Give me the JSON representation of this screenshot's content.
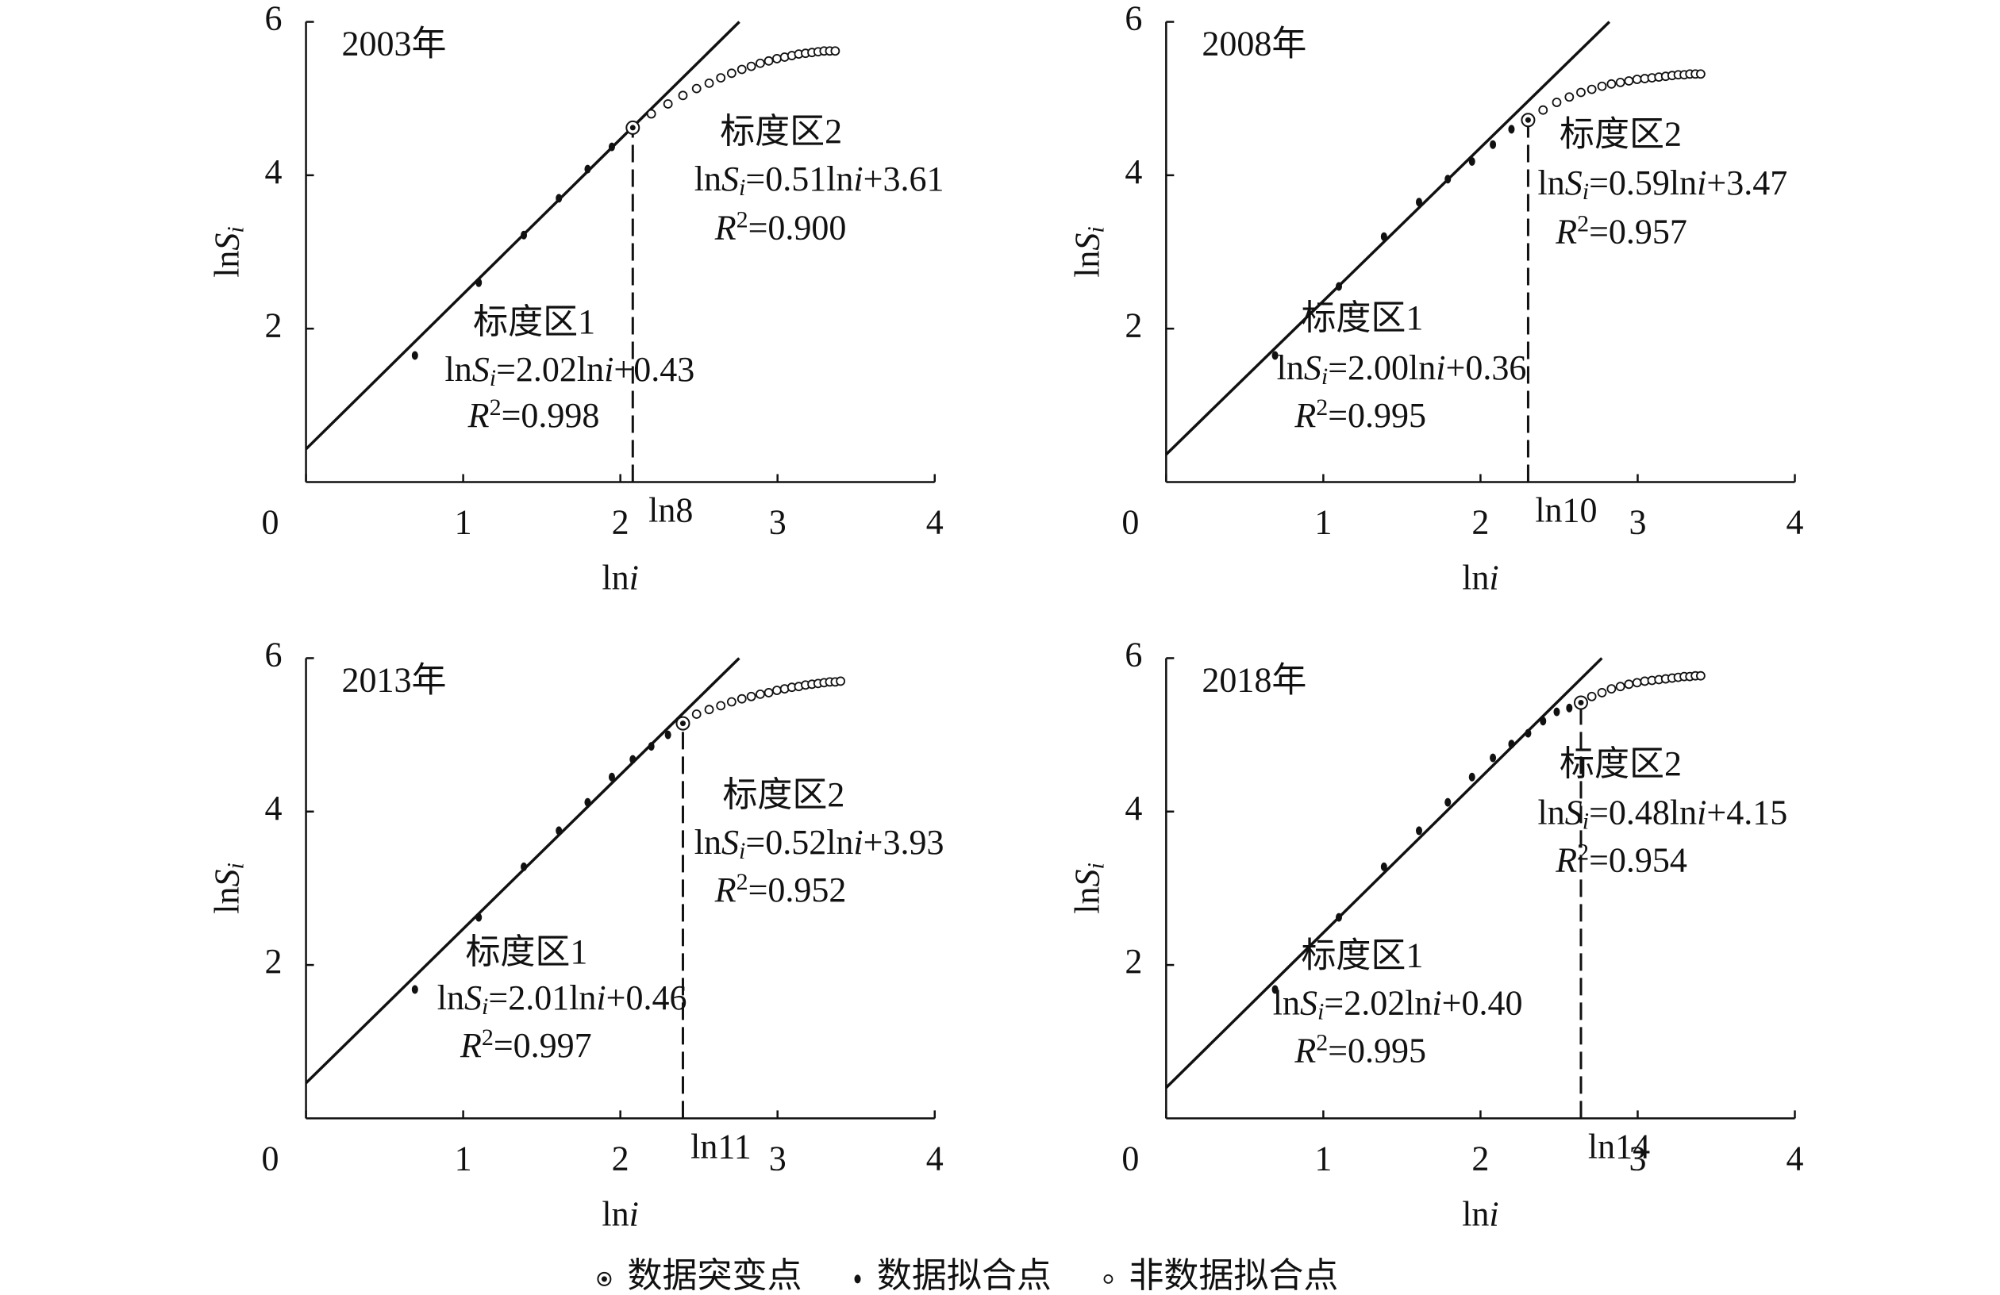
{
  "chart_data": [
    {
      "type": "scatter",
      "title": "2003年",
      "xlabel": [
        "ln",
        "i"
      ],
      "ylabel": [
        "ln",
        "S",
        "i"
      ],
      "xlim": [
        0,
        4
      ],
      "ylim": [
        0,
        6
      ],
      "xticks": [
        0,
        1,
        2,
        3,
        4
      ],
      "yticks": [
        2,
        4,
        6
      ],
      "series": [
        {
          "name": "数据突变点",
          "marker": "dotted-circle",
          "x": [
            2.079
          ],
          "values": [
            4.62
          ]
        },
        {
          "name": "数据拟合点",
          "marker": "filled",
          "x": [
            0.693,
            1.099,
            1.386,
            1.609,
            1.792,
            1.946
          ],
          "values": [
            1.65,
            2.6,
            3.22,
            3.7,
            4.08,
            4.37
          ]
        },
        {
          "name": "非数据拟合点",
          "marker": "open",
          "x": [
            2.197,
            2.303,
            2.398,
            2.485,
            2.565,
            2.639,
            2.708,
            2.773,
            2.833,
            2.89,
            2.944,
            2.996,
            3.045,
            3.091,
            3.135,
            3.178,
            3.219,
            3.258,
            3.296,
            3.332,
            3.367
          ],
          "values": [
            4.8,
            4.93,
            5.04,
            5.13,
            5.2,
            5.27,
            5.33,
            5.38,
            5.42,
            5.46,
            5.49,
            5.52,
            5.54,
            5.56,
            5.58,
            5.59,
            5.6,
            5.61,
            5.62,
            5.62,
            5.62
          ]
        }
      ],
      "fit_line": {
        "x": [
          0,
          2.757
        ],
        "values": [
          0.43,
          6
        ]
      },
      "breakpoint": {
        "value": 2.079,
        "label": "ln8"
      },
      "region1": {
        "label": "标度区1",
        "equation": [
          "ln",
          "S",
          "i",
          "=2.02ln",
          "i",
          "+0.43"
        ],
        "r2": [
          "R",
          "2",
          "=0.998"
        ]
      },
      "region2": {
        "label": "标度区2",
        "equation": [
          "ln",
          "S",
          "i",
          "=0.51ln",
          "i",
          "+3.61"
        ],
        "r2": [
          "R",
          "2",
          "=0.900"
        ]
      }
    },
    {
      "type": "scatter",
      "title": "2008年",
      "xlabel": [
        "ln",
        "i"
      ],
      "ylabel": [
        "ln",
        "S",
        "i"
      ],
      "xlim": [
        0,
        4
      ],
      "ylim": [
        0,
        6
      ],
      "xticks": [
        0,
        1,
        2,
        3,
        4
      ],
      "yticks": [
        2,
        4,
        6
      ],
      "series": [
        {
          "name": "数据突变点",
          "marker": "dotted-circle",
          "x": [
            2.303
          ],
          "values": [
            4.72
          ]
        },
        {
          "name": "数据拟合点",
          "marker": "filled",
          "x": [
            0.693,
            1.099,
            1.386,
            1.609,
            1.792,
            1.946,
            2.079,
            2.197
          ],
          "values": [
            1.65,
            2.55,
            3.2,
            3.65,
            3.95,
            4.18,
            4.4,
            4.6
          ]
        },
        {
          "name": "非数据拟合点",
          "marker": "open",
          "x": [
            2.398,
            2.485,
            2.565,
            2.639,
            2.708,
            2.773,
            2.833,
            2.89,
            2.944,
            2.996,
            3.045,
            3.091,
            3.135,
            3.178,
            3.219,
            3.258,
            3.296,
            3.332,
            3.367,
            3.401
          ],
          "values": [
            4.85,
            4.95,
            5.02,
            5.08,
            5.12,
            5.16,
            5.19,
            5.21,
            5.23,
            5.25,
            5.26,
            5.27,
            5.28,
            5.29,
            5.3,
            5.31,
            5.31,
            5.32,
            5.32,
            5.32
          ]
        }
      ],
      "fit_line": {
        "x": [
          0,
          2.82
        ],
        "values": [
          0.36,
          6
        ]
      },
      "breakpoint": {
        "value": 2.303,
        "label": "ln10"
      },
      "region1": {
        "label": "标度区1",
        "equation": [
          "ln",
          "S",
          "i",
          "=2.00ln",
          "i",
          "+0.36"
        ],
        "r2": [
          "R",
          "2",
          "=0.995"
        ]
      },
      "region2": {
        "label": "标度区2",
        "equation": [
          "ln",
          "S",
          "i",
          "=0.59ln",
          "i",
          "+3.47"
        ],
        "r2": [
          "R",
          "2",
          "=0.957"
        ]
      }
    },
    {
      "type": "scatter",
      "title": "2013年",
      "xlabel": [
        "ln",
        "i"
      ],
      "ylabel": [
        "ln",
        "S",
        "i"
      ],
      "xlim": [
        0,
        4
      ],
      "ylim": [
        0,
        6
      ],
      "xticks": [
        0,
        1,
        2,
        3,
        4
      ],
      "yticks": [
        2,
        4,
        6
      ],
      "series": [
        {
          "name": "数据突变点",
          "marker": "dotted-circle",
          "x": [
            2.398
          ],
          "values": [
            5.15
          ]
        },
        {
          "name": "数据拟合点",
          "marker": "filled",
          "x": [
            0.693,
            1.099,
            1.386,
            1.609,
            1.792,
            1.946,
            2.079,
            2.197,
            2.303
          ],
          "values": [
            1.68,
            2.62,
            3.28,
            3.75,
            4.12,
            4.45,
            4.68,
            4.85,
            5.0
          ]
        },
        {
          "name": "非数据拟合点",
          "marker": "open",
          "x": [
            2.485,
            2.565,
            2.639,
            2.708,
            2.773,
            2.833,
            2.89,
            2.944,
            2.996,
            3.045,
            3.091,
            3.135,
            3.178,
            3.219,
            3.258,
            3.296,
            3.332,
            3.367,
            3.401
          ],
          "values": [
            5.27,
            5.33,
            5.38,
            5.43,
            5.47,
            5.5,
            5.53,
            5.55,
            5.58,
            5.6,
            5.62,
            5.63,
            5.65,
            5.66,
            5.67,
            5.68,
            5.69,
            5.69,
            5.7
          ]
        }
      ],
      "fit_line": {
        "x": [
          0,
          2.756
        ],
        "values": [
          0.46,
          6
        ]
      },
      "breakpoint": {
        "value": 2.398,
        "label": "ln11"
      },
      "region1": {
        "label": "标度区1",
        "equation": [
          "ln",
          "S",
          "i",
          "=2.01ln",
          "i",
          "+0.46"
        ],
        "r2": [
          "R",
          "2",
          "=0.997"
        ]
      },
      "region2": {
        "label": "标度区2",
        "equation": [
          "ln",
          "S",
          "i",
          "=0.52ln",
          "i",
          "+3.93"
        ],
        "r2": [
          "R",
          "2",
          "=0.952"
        ]
      }
    },
    {
      "type": "scatter",
      "title": "2018年",
      "xlabel": [
        "ln",
        "i"
      ],
      "ylabel": [
        "ln",
        "S",
        "i"
      ],
      "xlim": [
        0,
        4
      ],
      "ylim": [
        0,
        6
      ],
      "xticks": [
        0,
        1,
        2,
        3,
        4
      ],
      "yticks": [
        2,
        4,
        6
      ],
      "series": [
        {
          "name": "数据突变点",
          "marker": "dotted-circle",
          "x": [
            2.639
          ],
          "values": [
            5.42
          ]
        },
        {
          "name": "数据拟合点",
          "marker": "filled",
          "x": [
            0.693,
            1.099,
            1.386,
            1.609,
            1.792,
            1.946,
            2.079,
            2.197,
            2.303,
            2.398,
            2.485,
            2.565
          ],
          "values": [
            1.68,
            2.62,
            3.28,
            3.75,
            4.12,
            4.45,
            4.7,
            4.88,
            5.02,
            5.18,
            5.3,
            5.35
          ]
        },
        {
          "name": "非数据拟合点",
          "marker": "open",
          "x": [
            2.708,
            2.773,
            2.833,
            2.89,
            2.944,
            2.996,
            3.045,
            3.091,
            3.135,
            3.178,
            3.219,
            3.258,
            3.296,
            3.332,
            3.367,
            3.401
          ],
          "values": [
            5.5,
            5.55,
            5.6,
            5.63,
            5.66,
            5.68,
            5.7,
            5.71,
            5.72,
            5.73,
            5.74,
            5.75,
            5.76,
            5.76,
            5.77,
            5.77
          ]
        }
      ],
      "fit_line": {
        "x": [
          0,
          2.772
        ],
        "values": [
          0.4,
          6
        ]
      },
      "breakpoint": {
        "value": 2.639,
        "label": "ln14"
      },
      "region1": {
        "label": "标度区1",
        "equation": [
          "ln",
          "S",
          "i",
          "=2.02ln",
          "i",
          "+0.40"
        ],
        "r2": [
          "R",
          "2",
          "=0.995"
        ]
      },
      "region2": {
        "label": "标度区2",
        "equation": [
          "ln",
          "S",
          "i",
          "=0.48ln",
          "i",
          "+4.15"
        ],
        "r2": [
          "R",
          "2",
          "=0.954"
        ]
      }
    }
  ]
}
